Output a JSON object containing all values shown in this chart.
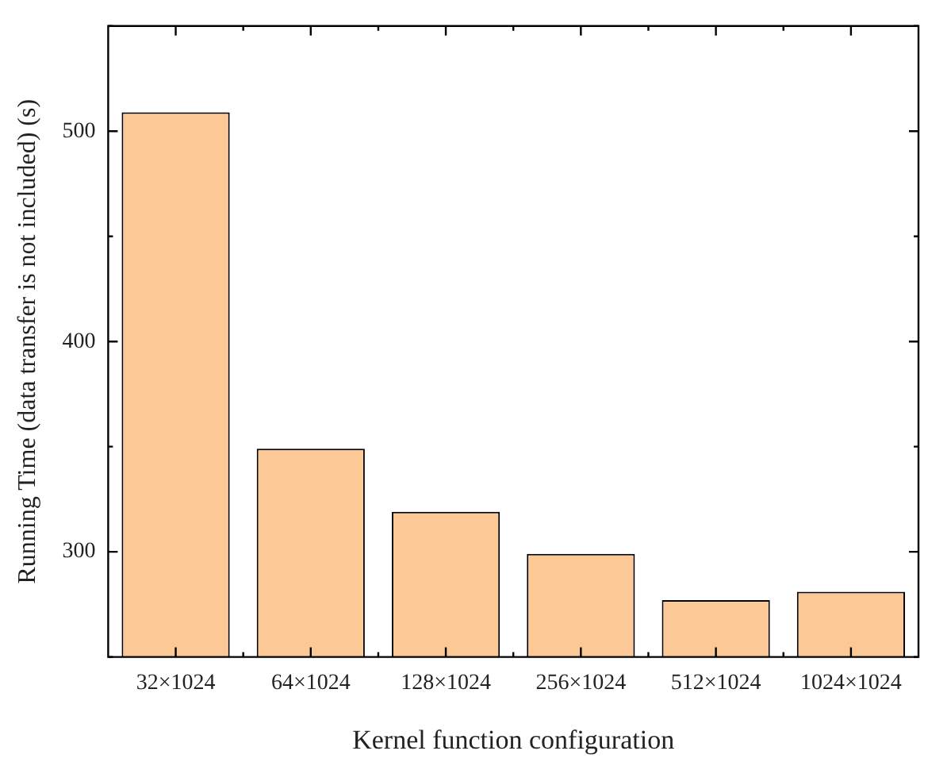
{
  "chart_data": {
    "type": "bar",
    "xlabel": "Kernel function configuration",
    "ylabel": "Running Time (data transfer is not included) (s)",
    "categories": [
      "32×1024",
      "64×1024",
      "128×1024",
      "256×1024",
      "512×1024",
      "1024×1024"
    ],
    "values": [
      509,
      349,
      319,
      299,
      277,
      281
    ],
    "color": "#fbc896",
    "ylim": [
      250,
      550
    ],
    "yticks": [
      {
        "value": 250,
        "label": null
      },
      300,
      {
        "value": 350,
        "label": null
      },
      400,
      {
        "value": 450,
        "label": null
      },
      500,
      {
        "value": 550,
        "label": null
      }
    ],
    "grid": false,
    "legend": false
  }
}
